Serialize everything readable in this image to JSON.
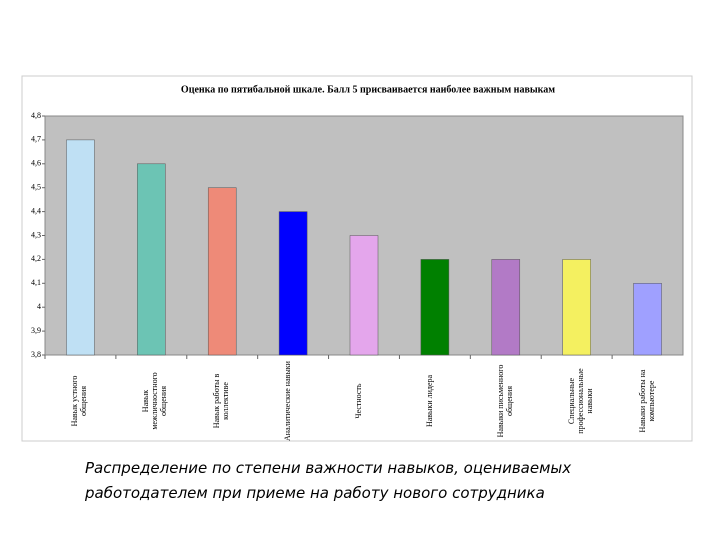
{
  "chart_data": {
    "type": "bar",
    "title": "Оценка по пятибальной шкале. Балл 5 присваивается наиболее важным навыкам",
    "categories": [
      "Навык устного общения",
      "Навык межличностного общения",
      "Навык работы в коллективе",
      "Аналитические навыки",
      "Честность",
      "Навыки лидера",
      "Навыки письменного общения",
      "Специальные профессиональные навыки",
      "Навыки работы на компьютере"
    ],
    "values": [
      4.7,
      4.6,
      4.5,
      4.4,
      4.3,
      4.2,
      4.2,
      4.2,
      4.1
    ],
    "colors": [
      "#bfe0f4",
      "#6cc4b4",
      "#ee8a78",
      "#0000ff",
      "#e4a6ec",
      "#008000",
      "#b27ac6",
      "#f4f060",
      "#9fa0ff"
    ],
    "ylim": [
      3.8,
      4.8
    ],
    "yticks": [
      {
        "value": 3.8,
        "label": "3,8"
      },
      {
        "value": 3.9,
        "label": "3,9"
      },
      4,
      {
        "value": 4.1,
        "label": "4,1"
      },
      {
        "value": 4.2,
        "label": "4,2"
      },
      {
        "value": 4.3,
        "label": "4,3"
      },
      {
        "value": 4.4,
        "label": "4,4"
      },
      {
        "value": 4.5,
        "label": "4,5"
      },
      {
        "value": 4.6,
        "label": "4,6"
      },
      {
        "value": 4.7,
        "label": "4,7"
      },
      {
        "value": 4.8,
        "label": "4,8"
      }
    ],
    "grid": false,
    "caption": "Распределение по степени важности навыков, оцениваемых работодателем при приеме на работу нового сотрудника"
  }
}
